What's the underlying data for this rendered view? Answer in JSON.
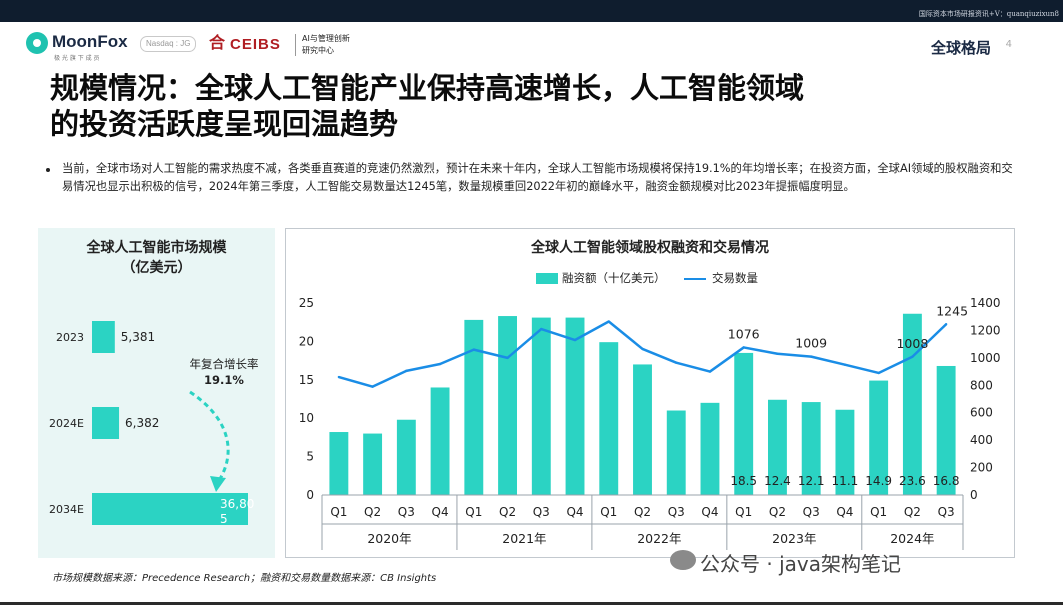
{
  "header": {
    "top_strip": "国际资本市场研报资讯+V：quanqiuzixun8",
    "brand": "MoonFox",
    "brand_sub": "极 光 旗 下 成 员",
    "exchange_badge": "Nasdaq : JG",
    "partner": "CEIBS",
    "partner_sub_1": "AI与管理创新",
    "partner_sub_2": "研究中心",
    "section": "全球格局",
    "page_number": "4"
  },
  "title_line1": "规模情况：全球人工智能产业保持高速增长，人工智能领域",
  "title_line2": "的投资活跃度呈现回温趋势",
  "bullet_text": "当前，全球市场对人工智能的需求热度不减，各类垂直赛道的竞速仍然激烈，预计在未来十年内，全球人工智能市场规模将保持19.1%的年均增长率；在投资方面，全球AI领域的股权融资和交易情况也显示出积极的信号，2024年第三季度，人工智能交易数量达1245笔，数量规模重回2022年初的巅峰水平，融资金额规模对比2023年提振幅度明显。",
  "chart_data": [
    {
      "type": "bar",
      "title": "全球人工智能市场规模\n（亿美元）",
      "orientation": "horizontal",
      "categories": [
        "2023",
        "2024E",
        "2034E"
      ],
      "values": [
        5381,
        6382,
        36805
      ],
      "value_labels": [
        "5,381",
        "6,382",
        "36,80\n5"
      ],
      "annotation": "年复合增长率",
      "annotation_value": "19.1%",
      "color": "#2bd3c3"
    },
    {
      "type": "bar+line",
      "title": "全球人工智能领域股权融资和交易情况",
      "legend": [
        "融资额（十亿美元）",
        "交易数量"
      ],
      "legend_position": "top",
      "x_groups": [
        {
          "year": "2020年",
          "quarters": [
            "Q1",
            "Q2",
            "Q3",
            "Q4"
          ]
        },
        {
          "year": "2021年",
          "quarters": [
            "Q1",
            "Q2",
            "Q3",
            "Q4"
          ]
        },
        {
          "year": "2022年",
          "quarters": [
            "Q1",
            "Q2",
            "Q3",
            "Q4"
          ]
        },
        {
          "year": "2023年",
          "quarters": [
            "Q1",
            "Q2",
            "Q3",
            "Q4"
          ]
        },
        {
          "year": "2024年",
          "quarters": [
            "Q1",
            "Q2",
            "Q3"
          ]
        }
      ],
      "series": [
        {
          "name": "融资额（十亿美元）",
          "type": "bar",
          "axis": "left",
          "color": "#2bd3c3",
          "values": [
            8.2,
            8.0,
            9.8,
            14.0,
            22.8,
            23.3,
            23.1,
            23.1,
            19.9,
            17.0,
            11.0,
            12.0,
            18.5,
            12.4,
            12.1,
            11.1,
            14.9,
            23.6,
            16.8
          ],
          "labels": [
            "",
            "",
            "",
            "",
            "",
            "",
            "",
            "",
            "",
            "",
            "",
            "",
            "18.5",
            "12.4",
            "12.1",
            "11.1",
            "14.9",
            "23.6",
            "16.8"
          ]
        },
        {
          "name": "交易数量",
          "type": "line",
          "axis": "right",
          "color": "#1a8de6",
          "values": [
            860,
            790,
            905,
            955,
            1060,
            1000,
            1210,
            1130,
            1265,
            1065,
            965,
            900,
            1076,
            1030,
            1009,
            950,
            890,
            1008,
            1245
          ],
          "labels": [
            "",
            "",
            "",
            "",
            "",
            "",
            "",
            "",
            "",
            "",
            "",
            "",
            "1076",
            "",
            "1009",
            "",
            "",
            "1008",
            "1245"
          ]
        }
      ],
      "y_left": {
        "min": 0,
        "max": 25,
        "ticks": [
          "0",
          "5",
          "10",
          "15",
          "20",
          "25"
        ]
      },
      "y_right": {
        "min": 0,
        "max": 1400,
        "ticks": [
          "0",
          "200",
          "400",
          "600",
          "800",
          "1000",
          "1200",
          "1400"
        ]
      },
      "grid": false
    }
  ],
  "source_text": "市场规模数据来源：Precedence Research；融资和交易数量数据来源：CB Insights",
  "watermark_text": "公众号 · java架构笔记",
  "colors": {
    "accent": "#2bd3c3",
    "line": "#1a8de6",
    "brand_dark": "#1b2a44",
    "ceibs_red": "#b01e23"
  }
}
